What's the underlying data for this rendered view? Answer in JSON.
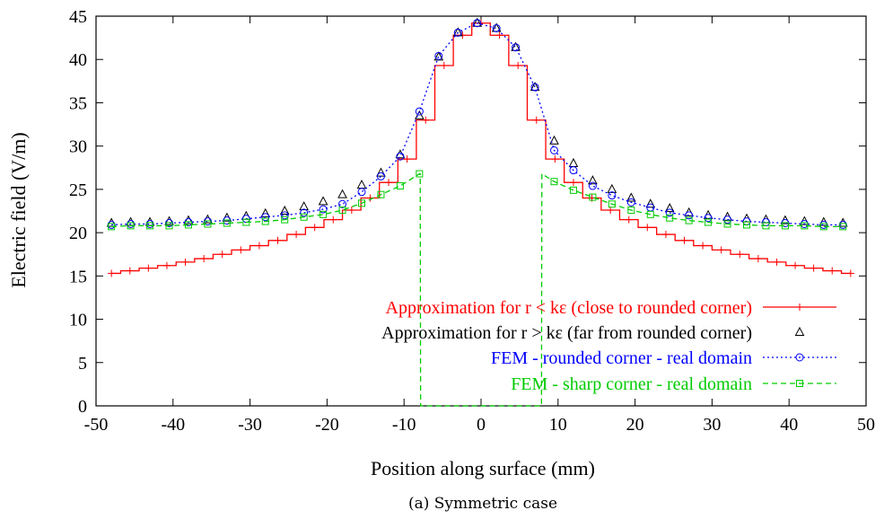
{
  "chart_data": {
    "type": "line",
    "xlabel": "Position along surface (mm)",
    "ylabel": "Electric field (V/m)",
    "caption": "(a) Symmetric case",
    "xlim": [
      -50,
      50
    ],
    "ylim": [
      0,
      45
    ],
    "xticks": [
      -50,
      -40,
      -30,
      -20,
      -10,
      0,
      10,
      20,
      30,
      40,
      50
    ],
    "yticks": [
      0,
      5,
      10,
      15,
      20,
      25,
      30,
      35,
      40,
      45
    ],
    "grid": false,
    "legend_position": "bottom-right",
    "series": [
      {
        "name": "Approximation for r < kε (close to rounded corner)",
        "color": "#ff0000",
        "style": "solid",
        "marker": "plus",
        "x": [
          -48,
          -45.6,
          -43.2,
          -40.8,
          -38.4,
          -36,
          -33.6,
          -31.2,
          -28.8,
          -26.4,
          -24,
          -21.6,
          -19.2,
          -16.8,
          -14.4,
          -12,
          -9.6,
          -7.2,
          -4.8,
          -2.4,
          0,
          2.4,
          4.8,
          7.2,
          9.6,
          12,
          14.4,
          16.8,
          19.2,
          21.6,
          24,
          26.4,
          28.8,
          31.2,
          33.6,
          36,
          38.4,
          40.8,
          43.2,
          45.6,
          48
        ],
        "y": [
          15.3,
          15.6,
          15.9,
          16.2,
          16.6,
          17.0,
          17.5,
          18.0,
          18.5,
          19.1,
          19.8,
          20.6,
          21.5,
          22.6,
          24.0,
          25.8,
          28.5,
          33.0,
          39.3,
          42.8,
          44.2,
          42.8,
          39.3,
          33.0,
          28.5,
          25.8,
          24.0,
          22.6,
          21.5,
          20.6,
          19.8,
          19.1,
          18.5,
          18.0,
          17.5,
          17.0,
          16.6,
          16.2,
          15.9,
          15.6,
          15.3
        ]
      },
      {
        "name": "Approximation for r > kε (far from rounded corner)",
        "color": "#000000",
        "style": "points",
        "marker": "triangle",
        "x": [
          -48,
          -45.5,
          -43,
          -40.5,
          -38,
          -35.5,
          -33,
          -30.5,
          -28,
          -25.5,
          -23,
          -20.5,
          -18,
          -15.5,
          -13,
          -10.5,
          -8,
          -5.5,
          -3,
          -0.5,
          2,
          4.5,
          7,
          9.5,
          12,
          14.5,
          17,
          19.5,
          22,
          24.5,
          27,
          29.5,
          32,
          34.5,
          37,
          39.5,
          42,
          44.5,
          47
        ],
        "y": [
          21.1,
          21.2,
          21.2,
          21.3,
          21.4,
          21.5,
          21.7,
          21.9,
          22.2,
          22.5,
          23.0,
          23.6,
          24.4,
          25.5,
          26.9,
          29.0,
          33.5,
          40.3,
          43.1,
          44.2,
          43.6,
          41.4,
          36.8,
          30.6,
          28.0,
          26.0,
          25.0,
          24.0,
          23.3,
          22.8,
          22.3,
          22.0,
          21.8,
          21.6,
          21.5,
          21.4,
          21.3,
          21.2,
          21.1
        ]
      },
      {
        "name": "FEM - rounded corner - real domain",
        "color": "#0000ff",
        "style": "dotted",
        "marker": "circle",
        "x": [
          -48,
          -45.5,
          -43,
          -40.5,
          -38,
          -35.5,
          -33,
          -30.5,
          -28,
          -25.5,
          -23,
          -20.5,
          -18,
          -15.5,
          -13,
          -10.5,
          -8,
          -5.5,
          -3,
          -0.5,
          2,
          4.5,
          7,
          9.5,
          12,
          14.5,
          17,
          19.5,
          22,
          24.5,
          27,
          29.5,
          32,
          34.5,
          37,
          39.5,
          42,
          44.5,
          47
        ],
        "y": [
          20.9,
          21.0,
          21.0,
          21.1,
          21.2,
          21.3,
          21.4,
          21.6,
          21.8,
          22.0,
          22.3,
          22.7,
          23.3,
          24.7,
          26.5,
          28.8,
          34.0,
          40.4,
          43.1,
          44.2,
          43.6,
          41.4,
          36.8,
          29.5,
          27.2,
          25.4,
          24.3,
          23.5,
          22.9,
          22.3,
          22.0,
          21.7,
          21.5,
          21.3,
          21.2,
          21.1,
          21.0,
          20.9,
          20.9
        ]
      },
      {
        "name": "FEM - sharp corner - real domain",
        "color": "#00cc00",
        "style": "dashed",
        "marker": "square",
        "x": [
          -48,
          -45.5,
          -43,
          -40.5,
          -38,
          -35.5,
          -33,
          -30.5,
          -28,
          -25.5,
          -23,
          -20.5,
          -18,
          -15.5,
          -13,
          -10.5,
          -8,
          -7.9,
          -7.85,
          7.85,
          7.9,
          9.5,
          12,
          14.5,
          17,
          19.5,
          22,
          24.5,
          27,
          29.5,
          32,
          34.5,
          37,
          39.5,
          42,
          44.5,
          47
        ],
        "y": [
          20.7,
          20.8,
          20.8,
          20.8,
          20.9,
          21.0,
          21.1,
          21.2,
          21.3,
          21.5,
          21.8,
          22.1,
          22.6,
          23.4,
          24.4,
          25.4,
          26.8,
          26.8,
          0,
          0,
          26.8,
          25.9,
          24.9,
          24.1,
          23.3,
          22.6,
          22.1,
          21.7,
          21.4,
          21.2,
          21.0,
          20.9,
          20.8,
          20.8,
          20.8,
          20.7,
          20.7
        ]
      }
    ]
  }
}
